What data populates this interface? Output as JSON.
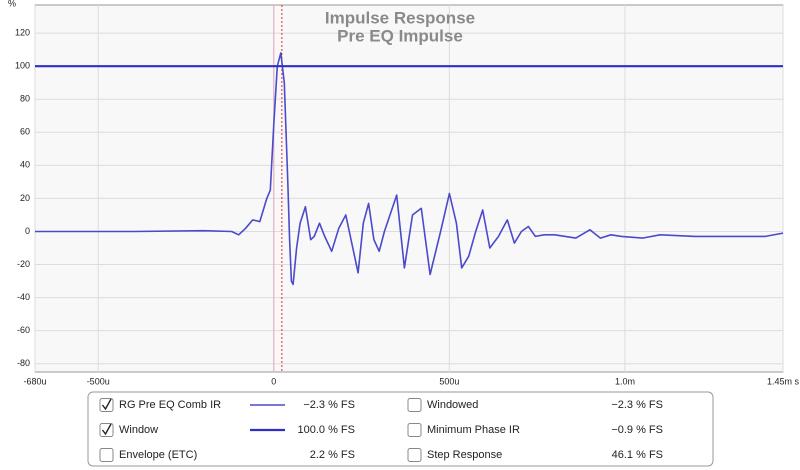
{
  "chart_data": {
    "type": "line",
    "title": "Impulse Response",
    "subtitle": "Pre EQ Impulse",
    "ylabel": "%",
    "xlim": [
      -680,
      1450
    ],
    "xticks": [
      {
        "value": -680,
        "label": "-680u"
      },
      {
        "value": -500,
        "label": "-500u"
      },
      0,
      {
        "value": 500,
        "label": "500u"
      },
      {
        "value": 1000,
        "label": "1.0m"
      },
      {
        "value": 1450,
        "label": "1.45m s"
      }
    ],
    "ylim": [
      -85,
      137
    ],
    "yticks": [
      -80,
      -60,
      -40,
      -20,
      0,
      20,
      40,
      60,
      80,
      100,
      120
    ],
    "grid": true,
    "markers": [
      {
        "x": 0,
        "color": "#e7a6bd",
        "dash": false
      },
      {
        "x": 23,
        "color": "#e02a2a",
        "dash": true
      }
    ],
    "series": [
      {
        "name": "RG Pre EQ Comb IR",
        "color": "#4a4acb",
        "width": 1.6,
        "readout": "−2.3 % FS",
        "checked": true,
        "label_color": "#3a3aa8",
        "x": [
          -680,
          -400,
          -200,
          -120,
          -100,
          -80,
          -60,
          -40,
          -20,
          -10,
          0,
          10,
          20,
          30,
          40,
          45,
          50,
          55,
          65,
          75,
          90,
          105,
          115,
          130,
          145,
          165,
          185,
          205,
          225,
          240,
          255,
          270,
          285,
          300,
          315,
          350,
          372,
          395,
          420,
          445,
          475,
          500,
          520,
          535,
          555,
          575,
          595,
          615,
          640,
          665,
          685,
          705,
          725,
          745,
          770,
          800,
          860,
          900,
          930,
          960,
          990,
          1050,
          1100,
          1200,
          1300,
          1400,
          1450
        ],
        "values": [
          0,
          0,
          0.5,
          0,
          -2,
          2,
          7,
          6,
          20,
          25,
          65,
          100,
          108,
          90,
          30,
          -5,
          -30,
          -32,
          -10,
          5,
          15,
          -5,
          -3,
          5,
          -3,
          -12,
          2,
          10,
          -10,
          -25,
          5,
          17,
          -5,
          -12,
          0,
          22,
          -22,
          10,
          14,
          -26,
          0,
          23,
          5,
          -22,
          -15,
          0,
          13,
          -10,
          -3,
          7,
          -7,
          0,
          3,
          -3,
          -2,
          -2,
          -4,
          1,
          -4,
          -2,
          -3,
          -4,
          -2,
          -3,
          -3,
          -3,
          -1
        ]
      },
      {
        "name": "Window",
        "color": "#2f2fc4",
        "width": 2.2,
        "readout": "100.0 % FS",
        "checked": true,
        "label_color": "#3a3aa8",
        "x": [
          -680,
          1450
        ],
        "values": [
          100,
          100
        ]
      }
    ],
    "other_traces": [
      {
        "name": "Envelope (ETC)",
        "readout": "2.2 % FS",
        "checked": false,
        "label_color": "#333333"
      },
      {
        "name": "Windowed",
        "readout": "−2.3 % FS",
        "checked": false,
        "label_color": "#3a3aa8"
      },
      {
        "name": "Minimum Phase IR",
        "readout": "−0.9 % FS",
        "checked": false,
        "label_color": "#666666"
      },
      {
        "name": "Step Response",
        "readout": "46.1 % FS",
        "checked": false,
        "label_color": "#333333"
      }
    ]
  }
}
